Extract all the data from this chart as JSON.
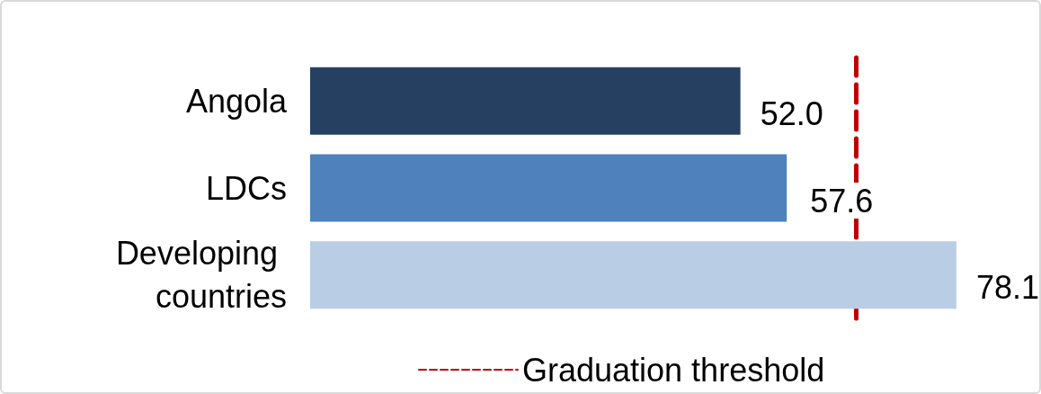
{
  "chart_data": {
    "type": "bar",
    "orientation": "horizontal",
    "categories": [
      "Angola",
      "LDCs",
      "Developing countries"
    ],
    "values": [
      52.0,
      57.6,
      78.1
    ],
    "colors": [
      "#264061",
      "#4f81bd",
      "#b9cde5"
    ],
    "value_labels": [
      "52.0",
      "57.6",
      "78.1"
    ],
    "xlim": [
      0,
      88
    ],
    "legend": "bottom",
    "ref_lines": [
      {
        "axis": "x",
        "value": 66,
        "label": "Graduation threshold",
        "color": "#c00000",
        "line_style": "dashed"
      }
    ]
  }
}
